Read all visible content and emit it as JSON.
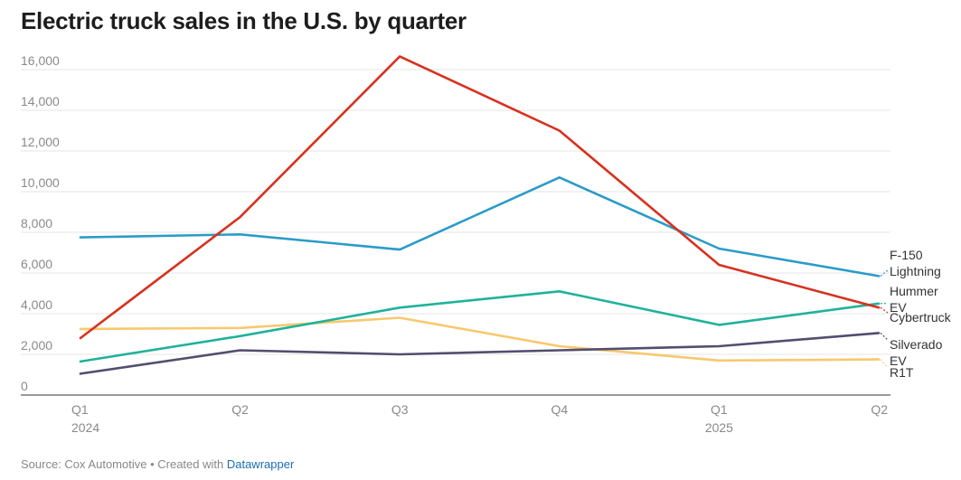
{
  "chart_data": {
    "type": "line",
    "title": "Electric truck sales in the U.S. by quarter",
    "xlabel": "",
    "ylabel": "",
    "ylim": [
      0,
      16000
    ],
    "yticks": [
      0,
      2000,
      4000,
      6000,
      8000,
      10000,
      12000,
      14000,
      16000
    ],
    "ytick_labels": [
      "0",
      "2,000",
      "4,000",
      "6,000",
      "8,000",
      "10,000",
      "12,000",
      "14,000",
      "16,000"
    ],
    "categories": [
      "Q1",
      "Q2",
      "Q3",
      "Q4",
      "Q1",
      "Q2"
    ],
    "year_labels": [
      {
        "index": 0,
        "label": "2024"
      },
      {
        "index": 4,
        "label": "2025"
      }
    ],
    "grid": true,
    "series": [
      {
        "name": "F-150 Lightning",
        "label_lines": [
          "F-150",
          "Lightning"
        ],
        "color": "#2b9bc8",
        "values": [
          7750,
          7900,
          7150,
          10700,
          7200,
          5850
        ]
      },
      {
        "name": "Cybertruck",
        "label_lines": [
          "Cybertruck"
        ],
        "color": "#d6321f",
        "values": [
          2800,
          8750,
          16650,
          13000,
          6400,
          4300
        ]
      },
      {
        "name": "Hummer EV",
        "label_lines": [
          "Hummer",
          "EV"
        ],
        "color": "#20b29a",
        "values": [
          1650,
          2900,
          4300,
          5100,
          3450,
          4500
        ]
      },
      {
        "name": "Silverado EV",
        "label_lines": [
          "Silverado",
          "EV"
        ],
        "color": "#524e6e",
        "values": [
          1050,
          2200,
          2000,
          2200,
          2400,
          3050
        ]
      },
      {
        "name": "R1T",
        "label_lines": [
          "R1T"
        ],
        "color": "#f8c86e",
        "values": [
          3250,
          3300,
          3800,
          2400,
          1700,
          1750
        ]
      }
    ]
  },
  "footer": {
    "source": "Source: Cox Automotive",
    "separator": " • ",
    "created": "Created with ",
    "tool": "Datawrapper"
  }
}
